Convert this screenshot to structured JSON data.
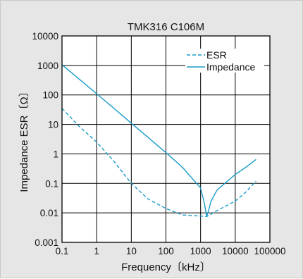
{
  "chart_data": {
    "type": "line",
    "title": "TMK316 C106M",
    "xlabel": "Frequency〔kHz〕",
    "ylabel": "Impedance ESR〔Ω〕",
    "x_scale": "log",
    "y_scale": "log",
    "xlim": [
      0.1,
      100000
    ],
    "ylim": [
      0.001,
      10000
    ],
    "x_ticks": [
      "0.1",
      "1",
      "10",
      "100",
      "1000",
      "10000",
      "100000"
    ],
    "y_ticks": [
      "0.001",
      "0.01",
      "0.1",
      "1",
      "10",
      "100",
      "1000",
      "10000"
    ],
    "grid": true,
    "legend_position": "top-right",
    "colors": {
      "series": "#1a9cc8",
      "grid": "#000000",
      "plot_bg": "#ffffff",
      "frame_bg": "#e6e6e6"
    },
    "series": [
      {
        "name": "ESR",
        "style": "dashed",
        "points": [
          [
            0.1,
            35
          ],
          [
            0.3,
            9
          ],
          [
            1,
            2.5
          ],
          [
            3,
            0.6
          ],
          [
            10,
            0.1
          ],
          [
            30,
            0.03
          ],
          [
            100,
            0.014
          ],
          [
            300,
            0.0085
          ],
          [
            1000,
            0.0078
          ],
          [
            1500,
            0.0075
          ],
          [
            2000,
            0.009
          ],
          [
            3000,
            0.012
          ],
          [
            10000,
            0.025
          ],
          [
            20000,
            0.05
          ],
          [
            40000,
            0.12
          ]
        ]
      },
      {
        "name": "Impedance",
        "style": "solid",
        "points": [
          [
            0.1,
            1050
          ],
          [
            1,
            110
          ],
          [
            10,
            11
          ],
          [
            100,
            1.1
          ],
          [
            300,
            0.35
          ],
          [
            1000,
            0.07
          ],
          [
            1300,
            0.02
          ],
          [
            1500,
            0.0075
          ],
          [
            1700,
            0.012
          ],
          [
            2000,
            0.025
          ],
          [
            3000,
            0.06
          ],
          [
            10000,
            0.2
          ],
          [
            20000,
            0.35
          ],
          [
            40000,
            0.65
          ]
        ]
      }
    ]
  }
}
